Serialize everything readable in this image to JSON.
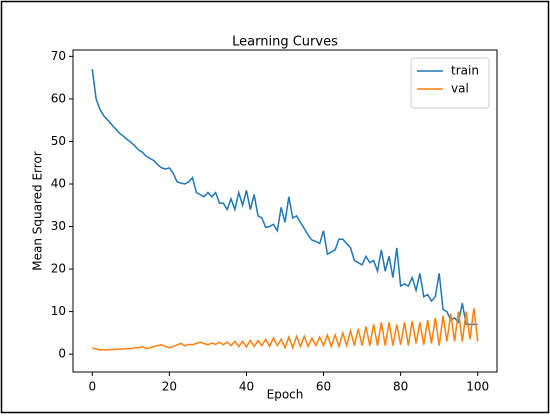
{
  "chart_data": {
    "type": "line",
    "title": "Learning Curves",
    "xlabel": "Epoch",
    "ylabel": "Mean Squared Error",
    "x": [
      0,
      1,
      2,
      3,
      4,
      5,
      6,
      7,
      8,
      9,
      10,
      11,
      12,
      13,
      14,
      15,
      16,
      17,
      18,
      19,
      20,
      21,
      22,
      23,
      24,
      25,
      26,
      27,
      28,
      29,
      30,
      31,
      32,
      33,
      34,
      35,
      36,
      37,
      38,
      39,
      40,
      41,
      42,
      43,
      44,
      45,
      46,
      47,
      48,
      49,
      50,
      51,
      52,
      53,
      54,
      55,
      56,
      57,
      58,
      59,
      60,
      61,
      62,
      63,
      64,
      65,
      66,
      67,
      68,
      69,
      70,
      71,
      72,
      73,
      74,
      75,
      76,
      77,
      78,
      79,
      80,
      81,
      82,
      83,
      84,
      85,
      86,
      87,
      88,
      89,
      90,
      91,
      92,
      93,
      94,
      95,
      96,
      97,
      98,
      99,
      100
    ],
    "series": [
      {
        "name": "train",
        "color": "#1f77b4",
        "values": [
          67,
          60,
          57.5,
          56,
          55,
          54,
          53,
          52,
          51.3,
          50.5,
          49.8,
          49,
          48,
          47.5,
          46.5,
          46,
          45.5,
          44.5,
          43.8,
          43.5,
          43.8,
          42.5,
          40.5,
          40.2,
          40,
          40.5,
          41.5,
          38,
          37.5,
          37,
          38,
          37,
          38,
          35.5,
          35.5,
          34,
          36.5,
          34,
          38,
          35,
          38.5,
          34,
          37.5,
          32.5,
          32,
          29.8,
          30,
          30.5,
          29,
          34.5,
          31,
          37,
          32,
          32.5,
          31,
          29.5,
          28,
          26.8,
          26.5,
          26,
          29,
          23.5,
          24,
          24.5,
          27,
          27,
          26,
          25,
          22,
          21.5,
          21,
          23,
          21.5,
          22,
          19.5,
          24.5,
          19.5,
          23,
          18,
          25,
          16,
          16.5,
          16,
          18,
          15,
          19,
          13.5,
          14,
          12.5,
          13.5,
          19,
          10.5,
          10,
          8,
          8.5,
          7.5,
          12,
          7,
          7,
          7,
          7
        ]
      },
      {
        "name": "val",
        "color": "#ff7f0e",
        "values": [
          1.5,
          1.2,
          1,
          1,
          1,
          1.1,
          1.1,
          1.2,
          1.2,
          1.3,
          1.3,
          1.5,
          1.5,
          1.8,
          1.3,
          1.5,
          1.8,
          2,
          2.2,
          1.8,
          1.5,
          1.8,
          2.2,
          2.5,
          2,
          2.3,
          2.2,
          2.5,
          2.8,
          2.5,
          2.2,
          2.6,
          2.3,
          2.8,
          2.2,
          2.8,
          2,
          3,
          1.8,
          3,
          1.7,
          3.2,
          1.8,
          3.2,
          2,
          3.5,
          1.8,
          3.8,
          2,
          3.5,
          1.5,
          4,
          1.5,
          4.2,
          1.8,
          4.2,
          1.8,
          3.8,
          2,
          4,
          2,
          4.5,
          1.8,
          4.5,
          1.8,
          5,
          2,
          5.5,
          2,
          6,
          2,
          6.5,
          2,
          7,
          2,
          7.5,
          2,
          7.5,
          2,
          7,
          2.2,
          7.5,
          2,
          7.8,
          2.5,
          7.5,
          2.2,
          8,
          2.5,
          8.5,
          2,
          9,
          3,
          9.5,
          3,
          10,
          3,
          10,
          3.5,
          10.8,
          3
        ]
      }
    ],
    "xlim": [
      -5,
      105
    ],
    "ylim": [
      -4.2,
      71.5
    ],
    "xticks": [
      0,
      20,
      40,
      60,
      80,
      100
    ],
    "yticks": [
      0,
      10,
      20,
      30,
      40,
      50,
      60,
      70
    ],
    "legend": "upper right"
  }
}
